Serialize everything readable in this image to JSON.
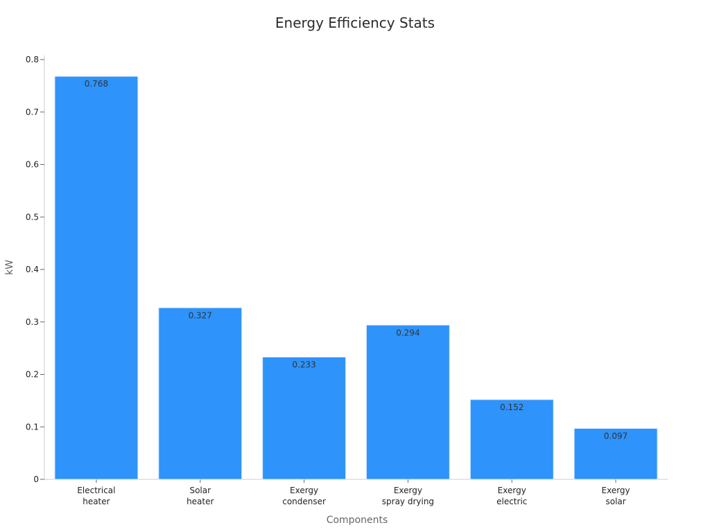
{
  "chart_data": {
    "type": "bar",
    "title": "Energy Efficiency Stats",
    "xlabel": "Components",
    "ylabel": "kW",
    "categories": [
      [
        "Electrical",
        "heater"
      ],
      [
        "Solar",
        "heater"
      ],
      [
        "Exergy",
        "condenser"
      ],
      [
        "Exergy",
        "spray drying"
      ],
      [
        "Exergy",
        "electric"
      ],
      [
        "Exergy",
        "solar"
      ]
    ],
    "values": [
      0.768,
      0.327,
      0.233,
      0.294,
      0.152,
      0.097
    ],
    "value_labels": [
      "0.768",
      "0.327",
      "0.233",
      "0.294",
      "0.152",
      "0.097"
    ],
    "ylim": [
      0,
      0.8
    ],
    "yticks": [
      "0",
      "0.1",
      "0.2",
      "0.3",
      "0.4",
      "0.5",
      "0.6",
      "0.7",
      "0.8"
    ],
    "grid": false,
    "bar_color": "#2e93fa",
    "bar_edge_color": "#d6e9ff",
    "axis_color": "#cccccc"
  }
}
